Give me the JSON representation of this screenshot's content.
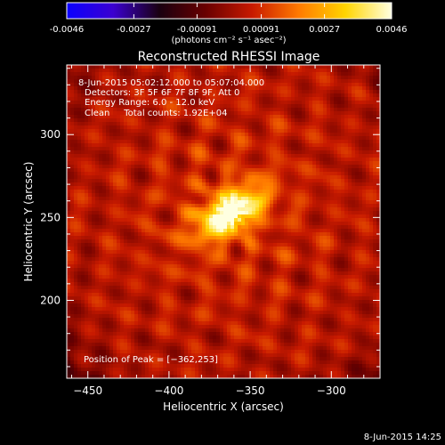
{
  "colors": {
    "background": "#000000",
    "text": "#ffffff",
    "colorbar": [
      "#0b00ff",
      "#3b00d0",
      "#1a0010",
      "#6a0000",
      "#c81a00",
      "#ff7a00",
      "#ffd400",
      "#ffffe0"
    ]
  },
  "colorbar": {
    "tick_labels": [
      "-0.0046",
      "-0.0027",
      "-0.00091",
      "0.00091",
      "0.0027",
      "0.0046"
    ],
    "units_label": "(photons cm⁻² s⁻¹ asec⁻²)",
    "range": [
      -0.0046,
      0.0046
    ]
  },
  "chart_data": {
    "type": "heatmap",
    "title": "Reconstructed RHESSI Image",
    "xlabel": "Heliocentric X (arcsec)",
    "ylabel": "Heliocentric Y (arcsec)",
    "xlim": [
      -463,
      -270
    ],
    "ylim": [
      153,
      342
    ],
    "x_ticks": [
      -450,
      -400,
      -350,
      -300
    ],
    "y_ticks": [
      200,
      250,
      300
    ],
    "x_tick_labels": [
      "−450",
      "−400",
      "−350",
      "−300"
    ],
    "y_tick_labels": [
      "200",
      "250",
      "300"
    ],
    "peak_position": [
      -362,
      253
    ],
    "annotations": [
      "8-Jun-2015 05:02:12.000 to 05:07:04.000",
      "Detectors: 3F 5F 6F 7F 8F 9F, Att 0",
      "Energy Range: 6.0 - 12.0 keV",
      "Clean     Total counts: 1.92E+04"
    ],
    "peak_label": "Position of Peak = [−362,253]"
  },
  "footer": {
    "timestamp": "8-Jun-2015 14:25"
  }
}
